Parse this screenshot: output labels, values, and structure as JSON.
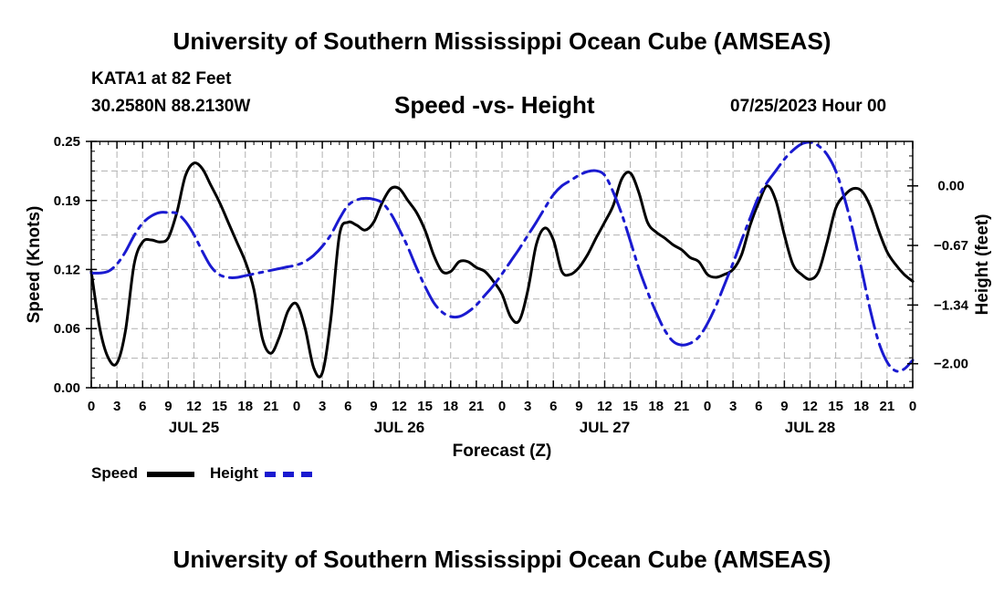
{
  "page": {
    "title": "University of Southern Mississippi Ocean Cube (AMSEAS)",
    "station": "KATA1 at 82 Feet",
    "coords": "30.2580N  88.2130W",
    "subtitle": "Speed -vs- Height",
    "datestamp": "07/25/2023 Hour 00",
    "footer_title": "University of Southern Mississippi Ocean Cube (AMSEAS)"
  },
  "chart_data": {
    "type": "line",
    "xlabel": "Forecast (Z)",
    "ylabel_left": "Speed (Knots)",
    "ylabel_right": "Height (feet)",
    "x_range_hours": [
      0,
      96
    ],
    "x_tick_step_hours": 3,
    "x_tick_labels": [
      "0",
      "3",
      "6",
      "9",
      "12",
      "15",
      "18",
      "21",
      "0",
      "3",
      "6",
      "9",
      "12",
      "15",
      "18",
      "21",
      "0",
      "3",
      "6",
      "9",
      "12",
      "15",
      "18",
      "21",
      "0",
      "3",
      "6",
      "9",
      "12",
      "15",
      "18",
      "21",
      "0"
    ],
    "date_labels": [
      {
        "hour": 12,
        "label": "JUL 25"
      },
      {
        "hour": 36,
        "label": "JUL 26"
      },
      {
        "hour": 60,
        "label": "JUL 27"
      },
      {
        "hour": 84,
        "label": "JUL 28"
      }
    ],
    "ylim_left": [
      0,
      0.25
    ],
    "yticks_left": [
      0.0,
      0.06,
      0.12,
      0.19,
      0.25
    ],
    "ytick_labels_left": [
      "0.00",
      "0.06",
      "0.12",
      "0.19",
      "0.25"
    ],
    "ylim_right": [
      -2.27,
      0.5
    ],
    "yticks_right": [
      -2.0,
      -1.34,
      -0.67,
      0.0
    ],
    "ytick_labels_right": [
      "−2.00",
      "−1.34",
      "−0.67",
      "0.00"
    ],
    "grid": true,
    "series": [
      {
        "name": "Speed",
        "axis": "left",
        "color": "#000000",
        "style": "solid",
        "x": [
          0,
          1,
          2,
          3,
          4,
          5,
          6,
          7,
          8,
          9,
          10,
          11,
          12,
          13,
          14,
          15,
          16,
          17,
          18,
          19,
          20,
          21,
          22,
          23,
          24,
          25,
          26,
          27,
          28,
          29,
          30,
          31,
          32,
          33,
          34,
          35,
          36,
          37,
          38,
          39,
          40,
          41,
          42,
          43,
          44,
          45,
          46,
          47,
          48,
          49,
          50,
          51,
          52,
          53,
          54,
          55,
          56,
          57,
          58,
          59,
          60,
          61,
          62,
          63,
          64,
          65,
          66,
          67,
          68,
          69,
          70,
          71,
          72,
          73,
          74,
          75,
          76,
          77,
          78,
          79,
          80,
          81,
          82,
          83,
          84,
          85,
          86,
          87,
          88,
          89,
          90,
          91,
          92,
          93,
          94,
          95,
          96
        ],
        "values": [
          0.118,
          0.06,
          0.03,
          0.025,
          0.058,
          0.125,
          0.148,
          0.15,
          0.148,
          0.152,
          0.178,
          0.215,
          0.228,
          0.222,
          0.205,
          0.188,
          0.168,
          0.148,
          0.128,
          0.1,
          0.05,
          0.035,
          0.052,
          0.078,
          0.085,
          0.06,
          0.02,
          0.015,
          0.07,
          0.155,
          0.168,
          0.165,
          0.16,
          0.168,
          0.188,
          0.202,
          0.202,
          0.19,
          0.178,
          0.16,
          0.135,
          0.118,
          0.118,
          0.128,
          0.128,
          0.122,
          0.118,
          0.108,
          0.095,
          0.072,
          0.068,
          0.098,
          0.145,
          0.162,
          0.15,
          0.118,
          0.115,
          0.122,
          0.135,
          0.152,
          0.168,
          0.185,
          0.212,
          0.218,
          0.198,
          0.168,
          0.158,
          0.152,
          0.145,
          0.14,
          0.132,
          0.128,
          0.115,
          0.112,
          0.115,
          0.12,
          0.135,
          0.165,
          0.188,
          0.205,
          0.19,
          0.155,
          0.125,
          0.115,
          0.11,
          0.118,
          0.148,
          0.182,
          0.195,
          0.202,
          0.2,
          0.185,
          0.16,
          0.138,
          0.125,
          0.115,
          0.108
        ]
      },
      {
        "name": "Height",
        "axis": "right",
        "color": "#1a1ad0",
        "style": "dashed",
        "x": [
          0,
          1,
          2,
          3,
          4,
          5,
          6,
          7,
          8,
          9,
          10,
          11,
          12,
          13,
          14,
          15,
          16,
          17,
          18,
          19,
          20,
          21,
          22,
          23,
          24,
          25,
          26,
          27,
          28,
          29,
          30,
          31,
          32,
          33,
          34,
          35,
          36,
          37,
          38,
          39,
          40,
          41,
          42,
          43,
          44,
          45,
          46,
          47,
          48,
          49,
          50,
          51,
          52,
          53,
          54,
          55,
          56,
          57,
          58,
          59,
          60,
          61,
          62,
          63,
          64,
          65,
          66,
          67,
          68,
          69,
          70,
          71,
          72,
          73,
          74,
          75,
          76,
          77,
          78,
          79,
          80,
          81,
          82,
          83,
          84,
          85,
          86,
          87,
          88,
          89,
          90,
          91,
          92,
          93,
          94,
          95,
          96
        ],
        "values": [
          -0.98,
          -0.98,
          -0.96,
          -0.88,
          -0.74,
          -0.56,
          -0.42,
          -0.34,
          -0.3,
          -0.3,
          -0.31,
          -0.4,
          -0.55,
          -0.74,
          -0.91,
          -1.0,
          -1.03,
          -1.03,
          -1.01,
          -0.99,
          -0.97,
          -0.95,
          -0.93,
          -0.91,
          -0.89,
          -0.85,
          -0.78,
          -0.68,
          -0.55,
          -0.37,
          -0.22,
          -0.16,
          -0.14,
          -0.15,
          -0.19,
          -0.31,
          -0.49,
          -0.69,
          -0.92,
          -1.13,
          -1.31,
          -1.42,
          -1.47,
          -1.47,
          -1.42,
          -1.34,
          -1.23,
          -1.12,
          -0.99,
          -0.85,
          -0.71,
          -0.56,
          -0.41,
          -0.25,
          -0.1,
          0.0,
          0.06,
          0.12,
          0.16,
          0.17,
          0.12,
          -0.07,
          -0.32,
          -0.62,
          -0.93,
          -1.19,
          -1.42,
          -1.62,
          -1.75,
          -1.79,
          -1.77,
          -1.7,
          -1.55,
          -1.35,
          -1.11,
          -0.87,
          -0.61,
          -0.36,
          -0.12,
          0.04,
          0.17,
          0.3,
          0.4,
          0.47,
          0.49,
          0.45,
          0.35,
          0.17,
          -0.13,
          -0.5,
          -0.93,
          -1.38,
          -1.75,
          -1.98,
          -2.08,
          -2.06,
          -1.96
        ]
      }
    ]
  },
  "legend": {
    "speed_label": "Speed",
    "height_label": "Height"
  }
}
